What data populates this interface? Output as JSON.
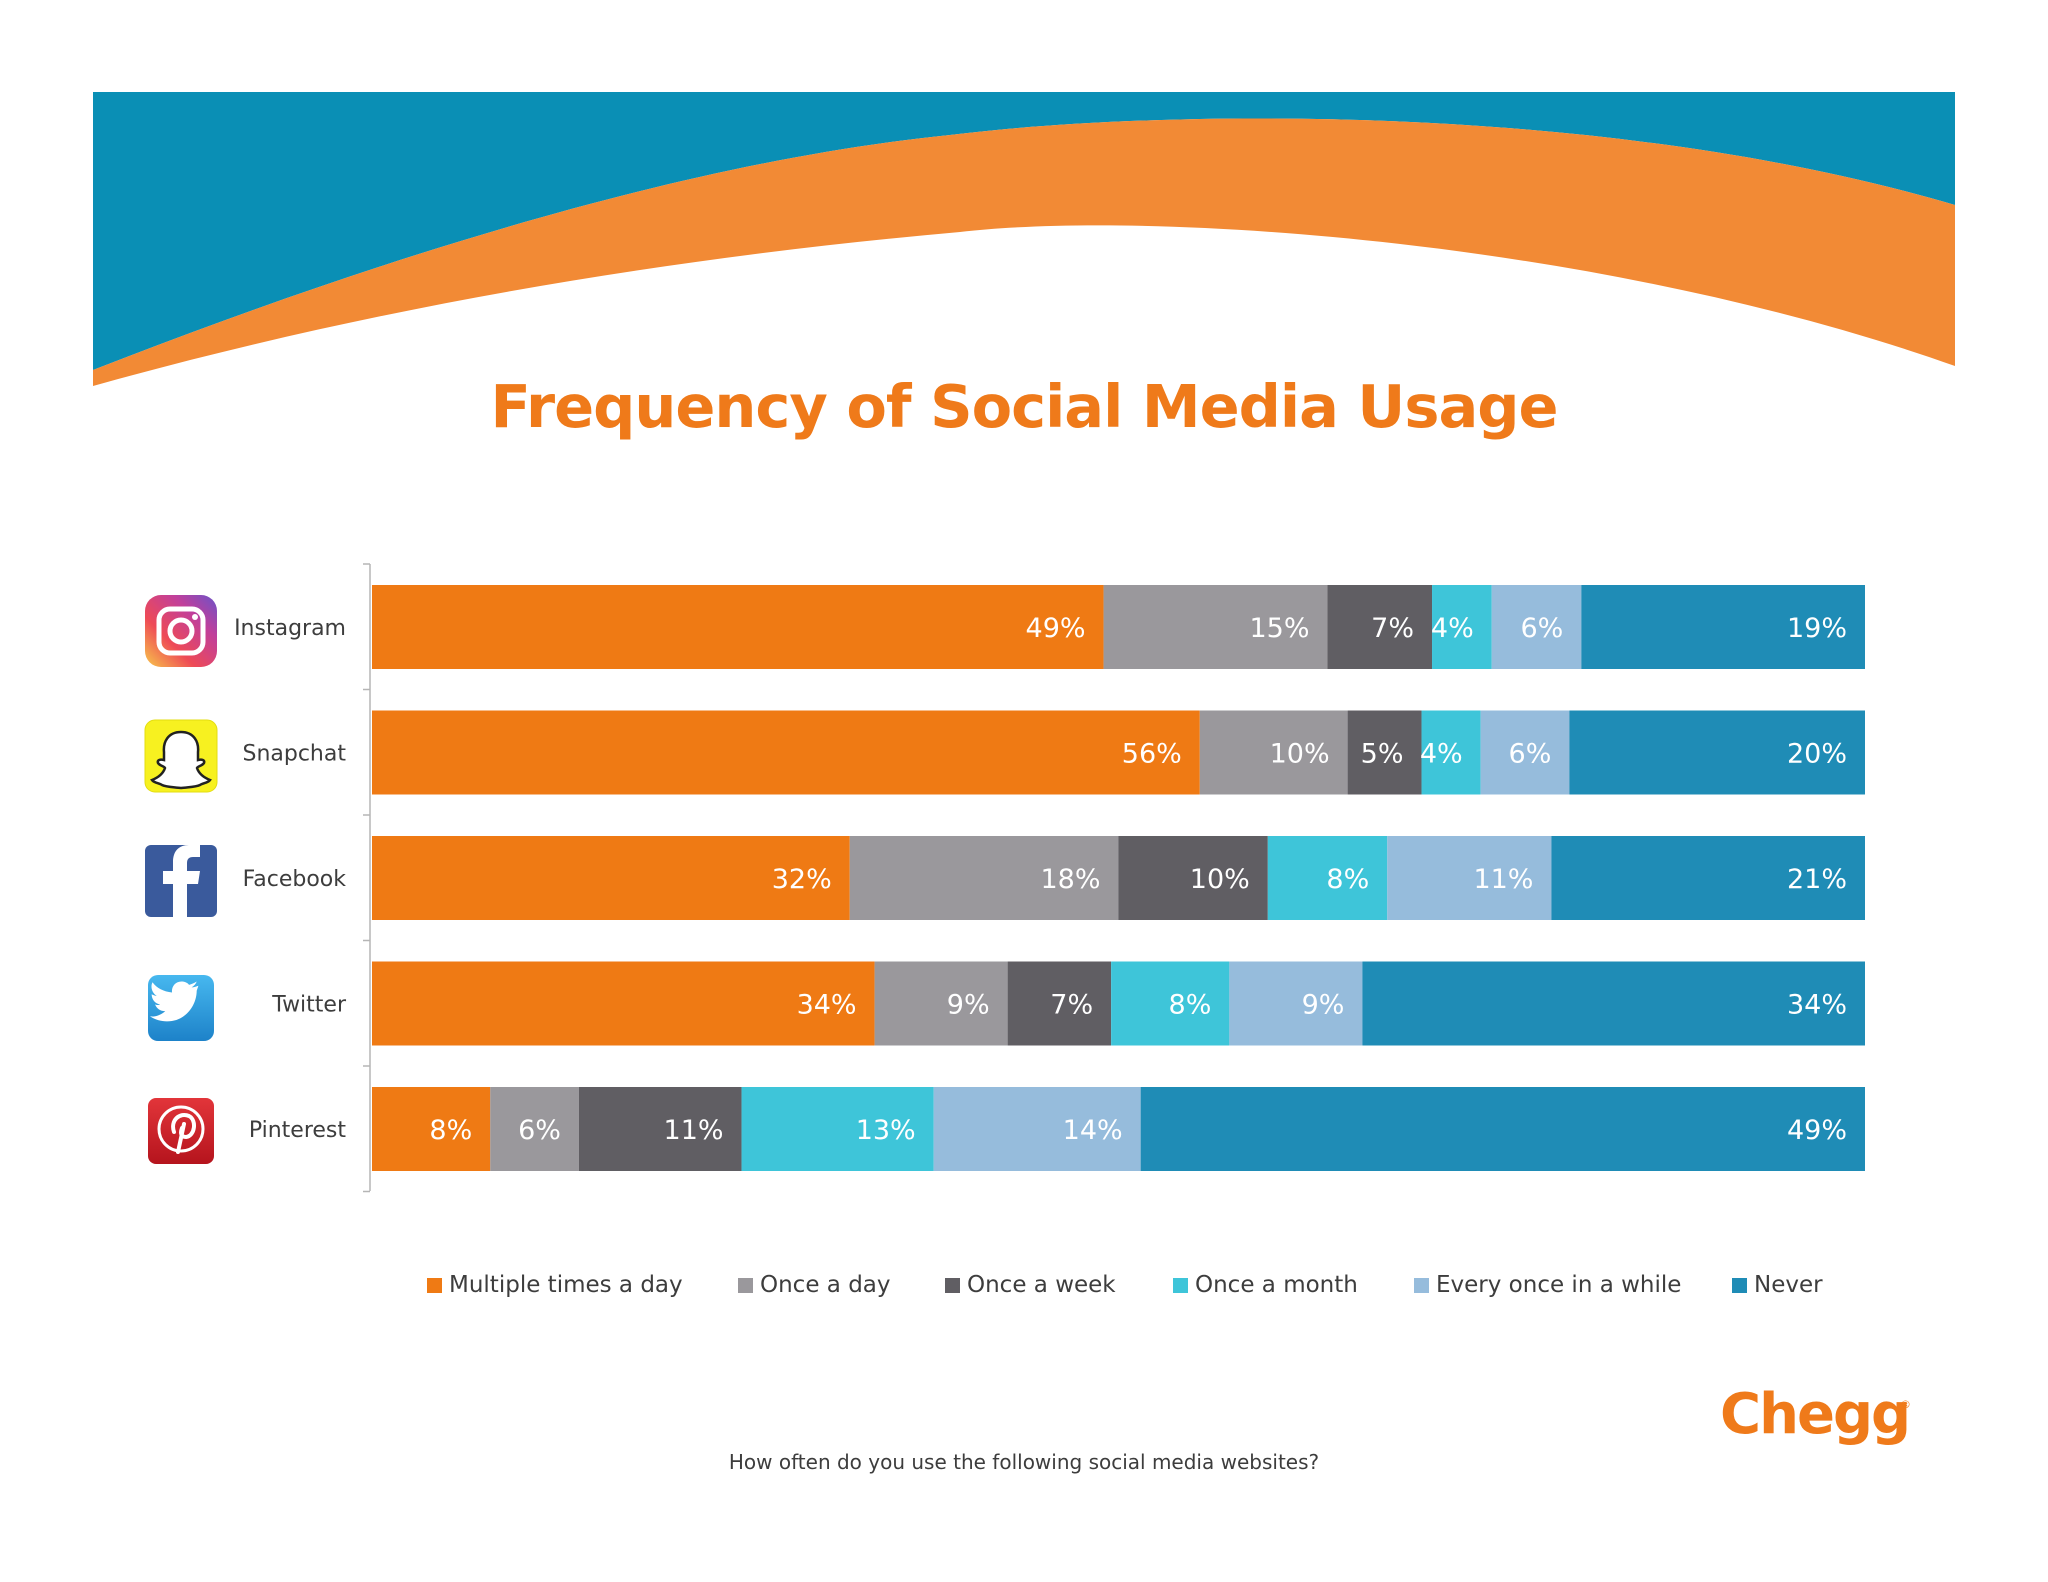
{
  "chart_data": {
    "type": "bar",
    "orientation": "horizontal",
    "stacked": true,
    "title": "Frequency of Social Media Usage",
    "subtitle": "How often do you use the following social media websites?",
    "xlabel": "",
    "ylabel": "",
    "xlim": [
      0,
      100
    ],
    "legend_position": "bottom",
    "categories": [
      "Instagram",
      "Snapchat",
      "Facebook",
      "Twitter",
      "Pinterest"
    ],
    "series": [
      {
        "name": "Multiple times a day",
        "color": "#ef7a14",
        "values": [
          49,
          56,
          32,
          34,
          8
        ]
      },
      {
        "name": "Once a day",
        "color": "#9a989c",
        "values": [
          15,
          10,
          18,
          9,
          6
        ]
      },
      {
        "name": "Once a week",
        "color": "#605e63",
        "values": [
          7,
          5,
          10,
          7,
          11
        ]
      },
      {
        "name": "Once a month",
        "color": "#3ec5d9",
        "values": [
          4,
          4,
          8,
          8,
          13
        ]
      },
      {
        "name": "Every once in a while",
        "color": "#96bcdc",
        "values": [
          6,
          6,
          11,
          9,
          14
        ]
      },
      {
        "name": "Never",
        "color": "#1f8cb6",
        "values": [
          19,
          20,
          21,
          34,
          49
        ]
      }
    ]
  },
  "platform_icons": [
    "instagram-icon",
    "snapchat-icon",
    "facebook-icon",
    "twitter-icon",
    "pinterest-icon"
  ],
  "brand": {
    "logo_text": "Chegg",
    "registered_mark": "®",
    "accent_color": "#ef7a1a",
    "banner_blue": "#0a8fb5",
    "banner_orange": "#f28a35"
  }
}
